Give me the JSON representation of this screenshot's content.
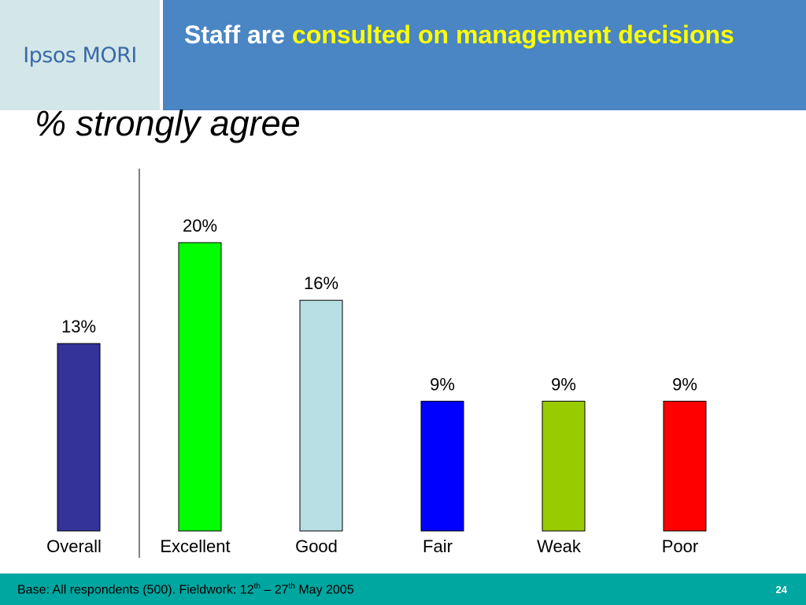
{
  "brand": {
    "logo_text": "Ipsos MORI"
  },
  "header": {
    "title_plain": "Staff are ",
    "title_highlight": "consulted on management decisions"
  },
  "subtitle": "% strongly agree",
  "chart_data": {
    "type": "bar",
    "title": "",
    "xlabel": "",
    "ylabel": "",
    "categories": [
      "Overall",
      "Excellent",
      "Good",
      "Fair",
      "Weak",
      "Poor"
    ],
    "values": [
      13,
      20,
      16,
      9,
      9,
      9
    ],
    "value_labels": [
      "13%",
      "20%",
      "16%",
      "9%",
      "9%",
      "9%"
    ],
    "colors": [
      "#333399",
      "#00ff00",
      "#b8dfe3",
      "#0000ff",
      "#99cc00",
      "#ff0000"
    ],
    "ylim": [
      0,
      20
    ],
    "grid": false,
    "legend": "none",
    "separator_after_category": "Overall"
  },
  "footer": {
    "base_text_part1": "Base: All respondents (500). Fieldwork: 12",
    "sup1": "th",
    "base_text_part2": " – 27",
    "sup2": "th",
    "base_text_part3": " May 2005",
    "page_number": "24"
  }
}
